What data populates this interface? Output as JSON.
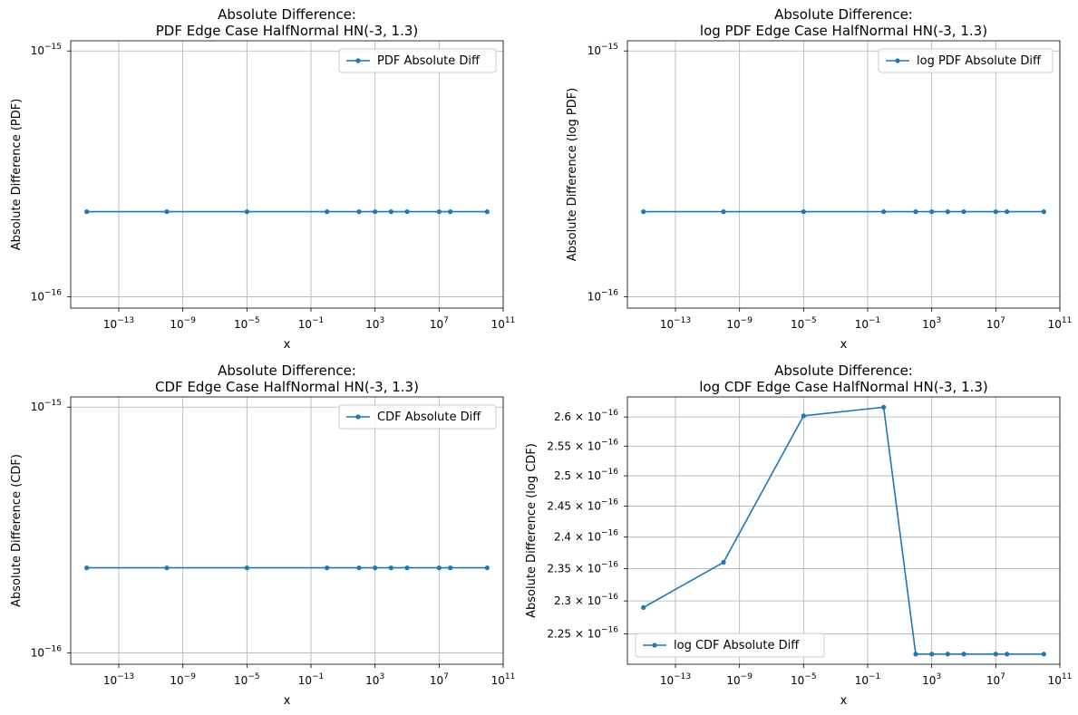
{
  "chart_data": [
    {
      "type": "line",
      "title_line1": "Absolute Difference:",
      "title_line2": "PDF Edge Case HalfNormal HN(-3, 1.3)",
      "xlabel": "x",
      "ylabel": "Absolute Difference (PDF)",
      "xscale": "log",
      "yscale": "log",
      "xlim": [
        1e-16,
        100000000000.0
      ],
      "ylim": [
        9e-17,
        1.1e-15
      ],
      "xticks": [
        {
          "value": 1e-13,
          "base": "10",
          "exp": "−13"
        },
        {
          "value": 1e-09,
          "base": "10",
          "exp": "−9"
        },
        {
          "value": 1e-05,
          "base": "10",
          "exp": "−5"
        },
        {
          "value": 0.1,
          "base": "10",
          "exp": "−1"
        },
        {
          "value": 1000.0,
          "base": "10",
          "exp": "3"
        },
        {
          "value": 10000000.0,
          "base": "10",
          "exp": "7"
        },
        {
          "value": 100000000000.0,
          "base": "10",
          "exp": "11"
        }
      ],
      "yticks": [
        {
          "value": 1e-15,
          "base": "10",
          "exp": "−15"
        },
        {
          "value": 1e-16,
          "base": "10",
          "exp": "−16"
        }
      ],
      "grid": true,
      "legend_position": "top-right",
      "color": "#1f77b4",
      "series": [
        {
          "name": "PDF Absolute Diff",
          "x": [
            1e-15,
            1e-10,
            1e-05,
            1,
            100,
            1000,
            10000,
            100000,
            10000000,
            50000000,
            10000000000
          ],
          "y": [
            2.22e-16,
            2.22e-16,
            2.22e-16,
            2.22e-16,
            2.22e-16,
            2.22e-16,
            2.22e-16,
            2.22e-16,
            2.22e-16,
            2.22e-16,
            2.22e-16
          ]
        }
      ]
    },
    {
      "type": "line",
      "title_line1": "Absolute Difference:",
      "title_line2": "log PDF Edge Case HalfNormal HN(-3, 1.3)",
      "xlabel": "x",
      "ylabel": "Absolute Difference (log PDF)",
      "xscale": "log",
      "yscale": "log",
      "xlim": [
        1e-16,
        100000000000.0
      ],
      "ylim": [
        9e-17,
        1.1e-15
      ],
      "xticks": [
        {
          "value": 1e-13,
          "base": "10",
          "exp": "−13"
        },
        {
          "value": 1e-09,
          "base": "10",
          "exp": "−9"
        },
        {
          "value": 1e-05,
          "base": "10",
          "exp": "−5"
        },
        {
          "value": 0.1,
          "base": "10",
          "exp": "−1"
        },
        {
          "value": 1000.0,
          "base": "10",
          "exp": "3"
        },
        {
          "value": 10000000.0,
          "base": "10",
          "exp": "7"
        },
        {
          "value": 100000000000.0,
          "base": "10",
          "exp": "11"
        }
      ],
      "yticks": [
        {
          "value": 1e-15,
          "base": "10",
          "exp": "−15"
        },
        {
          "value": 1e-16,
          "base": "10",
          "exp": "−16"
        }
      ],
      "grid": true,
      "legend_position": "top-right",
      "color": "#1f77b4",
      "series": [
        {
          "name": "log PDF Absolute Diff",
          "x": [
            1e-15,
            1e-10,
            1e-05,
            1,
            100,
            1000,
            10000,
            100000,
            10000000,
            50000000,
            10000000000
          ],
          "y": [
            2.22e-16,
            2.22e-16,
            2.22e-16,
            2.22e-16,
            2.22e-16,
            2.22e-16,
            2.22e-16,
            2.22e-16,
            2.22e-16,
            2.22e-16,
            2.22e-16
          ]
        }
      ]
    },
    {
      "type": "line",
      "title_line1": "Absolute Difference:",
      "title_line2": "CDF Edge Case HalfNormal HN(-3, 1.3)",
      "xlabel": "x",
      "ylabel": "Absolute Difference (CDF)",
      "xscale": "log",
      "yscale": "log",
      "xlim": [
        1e-16,
        100000000000.0
      ],
      "ylim": [
        9e-17,
        1.1e-15
      ],
      "xticks": [
        {
          "value": 1e-13,
          "base": "10",
          "exp": "−13"
        },
        {
          "value": 1e-09,
          "base": "10",
          "exp": "−9"
        },
        {
          "value": 1e-05,
          "base": "10",
          "exp": "−5"
        },
        {
          "value": 0.1,
          "base": "10",
          "exp": "−1"
        },
        {
          "value": 1000.0,
          "base": "10",
          "exp": "3"
        },
        {
          "value": 10000000.0,
          "base": "10",
          "exp": "7"
        },
        {
          "value": 100000000000.0,
          "base": "10",
          "exp": "11"
        }
      ],
      "yticks": [
        {
          "value": 1e-15,
          "base": "10",
          "exp": "−15"
        },
        {
          "value": 1e-16,
          "base": "10",
          "exp": "−16"
        }
      ],
      "grid": true,
      "legend_position": "top-right",
      "color": "#1f77b4",
      "series": [
        {
          "name": "CDF Absolute Diff",
          "x": [
            1e-15,
            1e-10,
            1e-05,
            1,
            100,
            1000,
            10000,
            100000,
            10000000,
            50000000,
            10000000000
          ],
          "y": [
            2.22e-16,
            2.22e-16,
            2.22e-16,
            2.22e-16,
            2.22e-16,
            2.22e-16,
            2.22e-16,
            2.22e-16,
            2.22e-16,
            2.22e-16,
            2.22e-16
          ]
        }
      ]
    },
    {
      "type": "line",
      "title_line1": "Absolute Difference:",
      "title_line2": "log CDF Edge Case HalfNormal HN(-3, 1.3)",
      "xlabel": "x",
      "ylabel": "Absolute Difference (log CDF)",
      "xscale": "log",
      "yscale": "log",
      "xlim": [
        1e-16,
        100000000000.0
      ],
      "ylim": [
        2.205e-16,
        2.635e-16
      ],
      "xticks": [
        {
          "value": 1e-13,
          "base": "10",
          "exp": "−13"
        },
        {
          "value": 1e-09,
          "base": "10",
          "exp": "−9"
        },
        {
          "value": 1e-05,
          "base": "10",
          "exp": "−5"
        },
        {
          "value": 0.1,
          "base": "10",
          "exp": "−1"
        },
        {
          "value": 1000.0,
          "base": "10",
          "exp": "3"
        },
        {
          "value": 10000000.0,
          "base": "10",
          "exp": "7"
        },
        {
          "value": 100000000000.0,
          "base": "10",
          "exp": "11"
        }
      ],
      "yticks": [
        {
          "value": 2.25e-16,
          "base": "2.25 × 10",
          "exp": "−16"
        },
        {
          "value": 2.3e-16,
          "base": "2.3 × 10",
          "exp": "−16"
        },
        {
          "value": 2.35e-16,
          "base": "2.35 × 10",
          "exp": "−16"
        },
        {
          "value": 2.4e-16,
          "base": "2.4 × 10",
          "exp": "−16"
        },
        {
          "value": 2.45e-16,
          "base": "2.45 × 10",
          "exp": "−16"
        },
        {
          "value": 2.5e-16,
          "base": "2.5 × 10",
          "exp": "−16"
        },
        {
          "value": 2.55e-16,
          "base": "2.55 × 10",
          "exp": "−16"
        },
        {
          "value": 2.6e-16,
          "base": "2.6 × 10",
          "exp": "−16"
        }
      ],
      "grid": true,
      "legend_position": "lower-left",
      "color": "#1f77b4",
      "series": [
        {
          "name": "log CDF Absolute Diff",
          "x": [
            1e-15,
            1e-10,
            1e-05,
            1,
            100,
            1000,
            10000,
            100000,
            10000000,
            50000000,
            10000000000
          ],
          "y": [
            2.29e-16,
            2.36e-16,
            2.602e-16,
            2.617e-16,
            2.22e-16,
            2.22e-16,
            2.22e-16,
            2.22e-16,
            2.22e-16,
            2.22e-16,
            2.22e-16
          ]
        }
      ]
    }
  ]
}
